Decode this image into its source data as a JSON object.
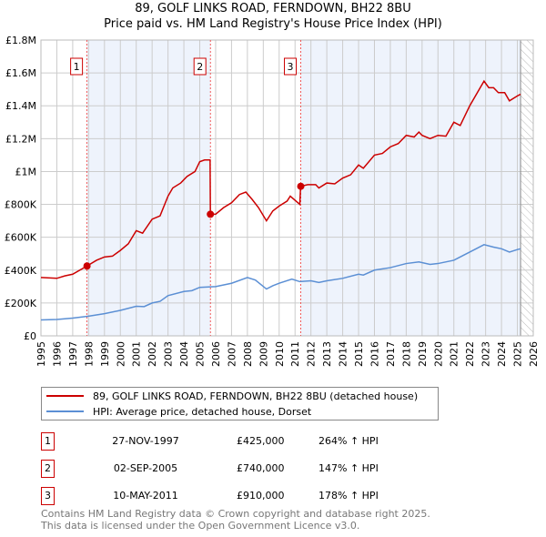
{
  "title_line1": "89, GOLF LINKS ROAD, FERNDOWN, BH22 8BU",
  "title_line2": "Price paid vs. HM Land Registry's House Price Index (HPI)",
  "colors": {
    "property": "#cc0000",
    "hpi": "#5b8fd4",
    "shade": "#eef3fc"
  },
  "chart_data": {
    "type": "line",
    "xlim": [
      1995,
      2026
    ],
    "ylim": [
      0,
      1800000
    ],
    "x_ticks": [
      "1995",
      "1996",
      "1997",
      "1998",
      "1999",
      "2000",
      "2001",
      "2002",
      "2003",
      "2004",
      "2005",
      "2006",
      "2007",
      "2008",
      "2009",
      "2010",
      "2011",
      "2012",
      "2013",
      "2014",
      "2015",
      "2016",
      "2017",
      "2018",
      "2019",
      "2020",
      "2021",
      "2022",
      "2023",
      "2024",
      "2025",
      "2026"
    ],
    "y_ticks": [
      {
        "v": 0,
        "label": "£0"
      },
      {
        "v": 200000,
        "label": "£200K"
      },
      {
        "v": 400000,
        "label": "£400K"
      },
      {
        "v": 600000,
        "label": "£600K"
      },
      {
        "v": 800000,
        "label": "£800K"
      },
      {
        "v": 1000000,
        "label": "£1M"
      },
      {
        "v": 1200000,
        "label": "£1.2M"
      },
      {
        "v": 1400000,
        "label": "£1.4M"
      },
      {
        "v": 1600000,
        "label": "£1.6M"
      },
      {
        "v": 1800000,
        "label": "£1.8M"
      }
    ],
    "grid": true,
    "forecast_from": 2025.2,
    "series": [
      {
        "name": "89, GOLF LINKS ROAD, FERNDOWN, BH22 8BU (detached house)",
        "unit": "£K",
        "points": [
          [
            1995,
            355
          ],
          [
            1996,
            350
          ],
          [
            1996.5,
            365
          ],
          [
            1997,
            375
          ],
          [
            1997.9,
            425
          ],
          [
            1998.5,
            460
          ],
          [
            1999,
            480
          ],
          [
            1999.5,
            485
          ],
          [
            2000,
            520
          ],
          [
            2000.5,
            560
          ],
          [
            2001,
            640
          ],
          [
            2001.4,
            625
          ],
          [
            2002,
            710
          ],
          [
            2002.5,
            730
          ],
          [
            2003,
            850
          ],
          [
            2003.3,
            900
          ],
          [
            2003.8,
            930
          ],
          [
            2004.2,
            970
          ],
          [
            2004.7,
            1000
          ],
          [
            2005,
            1060
          ],
          [
            2005.3,
            1070
          ],
          [
            2005.65,
            1070
          ],
          [
            2005.67,
            740
          ],
          [
            2006,
            740
          ],
          [
            2006.5,
            780
          ],
          [
            2007,
            810
          ],
          [
            2007.5,
            860
          ],
          [
            2007.9,
            875
          ],
          [
            2008.3,
            830
          ],
          [
            2008.7,
            780
          ],
          [
            2009.2,
            700
          ],
          [
            2009.6,
            760
          ],
          [
            2010,
            790
          ],
          [
            2010.5,
            820
          ],
          [
            2010.7,
            850
          ],
          [
            2011.3,
            800
          ],
          [
            2011.35,
            910
          ],
          [
            2011.8,
            920
          ],
          [
            2012.3,
            920
          ],
          [
            2012.5,
            900
          ],
          [
            2013,
            930
          ],
          [
            2013.5,
            925
          ],
          [
            2014,
            960
          ],
          [
            2014.5,
            980
          ],
          [
            2015,
            1040
          ],
          [
            2015.3,
            1020
          ],
          [
            2016,
            1100
          ],
          [
            2016.5,
            1110
          ],
          [
            2017,
            1150
          ],
          [
            2017.5,
            1170
          ],
          [
            2018,
            1220
          ],
          [
            2018.5,
            1210
          ],
          [
            2018.8,
            1240
          ],
          [
            2019,
            1220
          ],
          [
            2019.5,
            1200
          ],
          [
            2020,
            1220
          ],
          [
            2020.5,
            1215
          ],
          [
            2021,
            1300
          ],
          [
            2021.4,
            1280
          ],
          [
            2022,
            1400
          ],
          [
            2022.6,
            1500
          ],
          [
            2022.9,
            1550
          ],
          [
            2023.2,
            1510
          ],
          [
            2023.5,
            1510
          ],
          [
            2023.8,
            1480
          ],
          [
            2024.2,
            1480
          ],
          [
            2024.5,
            1430
          ],
          [
            2025,
            1460
          ],
          [
            2025.2,
            1470
          ]
        ]
      },
      {
        "name": "HPI: Average price, detached house, Dorset",
        "unit": "£K",
        "points": [
          [
            1995,
            97
          ],
          [
            1996,
            100
          ],
          [
            1997,
            108
          ],
          [
            1998,
            120
          ],
          [
            1999,
            135
          ],
          [
            2000,
            155
          ],
          [
            2001,
            180
          ],
          [
            2001.5,
            178
          ],
          [
            2002,
            200
          ],
          [
            2002.5,
            210
          ],
          [
            2003,
            245
          ],
          [
            2004,
            270
          ],
          [
            2004.5,
            275
          ],
          [
            2005,
            295
          ],
          [
            2006,
            300
          ],
          [
            2007,
            320
          ],
          [
            2008,
            355
          ],
          [
            2008.5,
            340
          ],
          [
            2009.2,
            285
          ],
          [
            2009.6,
            305
          ],
          [
            2010,
            320
          ],
          [
            2010.8,
            345
          ],
          [
            2011.3,
            330
          ],
          [
            2012,
            335
          ],
          [
            2012.5,
            325
          ],
          [
            2013,
            335
          ],
          [
            2014,
            350
          ],
          [
            2015,
            375
          ],
          [
            2015.3,
            370
          ],
          [
            2016,
            400
          ],
          [
            2017,
            415
          ],
          [
            2018,
            440
          ],
          [
            2018.8,
            450
          ],
          [
            2019.5,
            435
          ],
          [
            2020,
            440
          ],
          [
            2021,
            460
          ],
          [
            2022,
            510
          ],
          [
            2022.9,
            555
          ],
          [
            2023.5,
            540
          ],
          [
            2024,
            530
          ],
          [
            2024.5,
            510
          ],
          [
            2025,
            525
          ],
          [
            2025.2,
            530
          ]
        ]
      }
    ],
    "sales": [
      {
        "label": "1",
        "x": 1997.9,
        "value": 425
      },
      {
        "label": "2",
        "x": 2005.67,
        "value": 740
      },
      {
        "label": "3",
        "x": 2011.36,
        "value": 910
      }
    ]
  },
  "legend": {
    "property": "89, GOLF LINKS ROAD, FERNDOWN, BH22 8BU (detached house)",
    "hpi": "HPI: Average price, detached house, Dorset"
  },
  "transactions": [
    {
      "num": "1",
      "date": "27-NOV-1997",
      "price": "£425,000",
      "hpi": "264% ↑ HPI"
    },
    {
      "num": "2",
      "date": "02-SEP-2005",
      "price": "£740,000",
      "hpi": "147% ↑ HPI"
    },
    {
      "num": "3",
      "date": "10-MAY-2011",
      "price": "£910,000",
      "hpi": "178% ↑ HPI"
    }
  ],
  "footer": {
    "line1": "Contains HM Land Registry data © Crown copyright and database right 2025.",
    "line2": "This data is licensed under the Open Government Licence v3.0."
  }
}
